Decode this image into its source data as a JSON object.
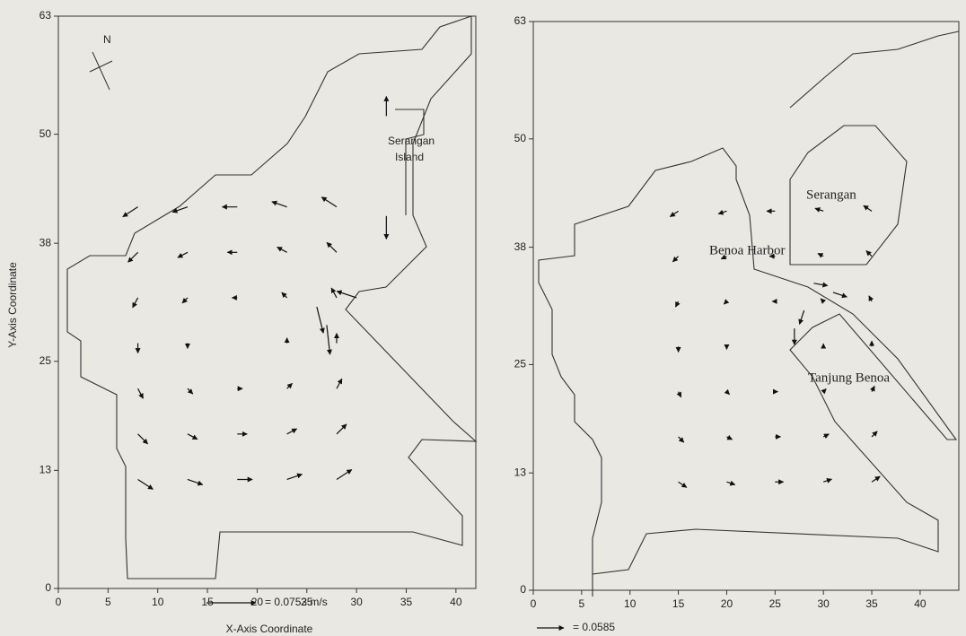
{
  "chart_data": [
    {
      "type": "quiver",
      "xlabel": "X-Axis Coordinate",
      "ylabel": "Y-Axis Coordinate",
      "annotations": [
        "N",
        "Serangan",
        "Island"
      ],
      "reference": {
        "value": 0.0753,
        "label": "= 0.0753 m/s"
      },
      "xlim": [
        0,
        42
      ],
      "ylim": [
        0,
        63
      ],
      "xticks": [
        0,
        5,
        10,
        15,
        20,
        25,
        30,
        35,
        40
      ],
      "yticks": [
        0,
        13,
        25,
        38,
        50,
        63
      ],
      "vectors": {
        "x": [
          8,
          13,
          18,
          23,
          28,
          8,
          13,
          18,
          23,
          28,
          8,
          13,
          18,
          23,
          28,
          8,
          13,
          23,
          28,
          8,
          13,
          18,
          23,
          28,
          8,
          13,
          18,
          23,
          28,
          8,
          13,
          18,
          23,
          28,
          26,
          27,
          33,
          33,
          30
        ],
        "y": [
          12,
          12,
          12,
          12,
          12,
          17,
          17,
          17,
          17,
          17,
          22,
          22,
          22,
          22,
          22,
          27,
          27,
          27,
          27,
          32,
          32,
          32,
          32,
          32,
          37,
          37,
          37,
          37,
          37,
          42,
          42,
          42,
          42,
          42,
          31,
          29,
          41,
          52,
          32
        ],
        "u": [
          0.023,
          0.023,
          0.023,
          0.023,
          0.023,
          0.015,
          0.015,
          0.015,
          0.015,
          0.015,
          0.008,
          0.008,
          0.008,
          0.008,
          0.008,
          0,
          0,
          0,
          0,
          -0.008,
          -0.008,
          -0.008,
          -0.008,
          -0.008,
          -0.015,
          -0.015,
          -0.015,
          -0.015,
          -0.015,
          -0.023,
          -0.023,
          -0.023,
          -0.023,
          -0.023,
          0.01,
          0.005,
          0,
          0,
          -0.03
        ],
        "v": [
          -0.015,
          -0.008,
          0,
          0.008,
          0.015,
          -0.015,
          -0.008,
          0,
          0.008,
          0.015,
          -0.015,
          -0.008,
          0,
          0.008,
          0.015,
          -0.015,
          -0.008,
          0.008,
          0.015,
          -0.015,
          -0.008,
          0,
          0.008,
          0.015,
          -0.015,
          -0.008,
          0,
          0.008,
          0.015,
          -0.015,
          -0.008,
          0,
          0.008,
          0.015,
          -0.04,
          -0.045,
          -0.035,
          0.03,
          0.01
        ]
      }
    },
    {
      "type": "quiver",
      "annotations": [
        "Serangan",
        "Benoa Harbor",
        "Tanjung Benoa"
      ],
      "reference": {
        "value": 0.0585,
        "label": "= 0.0585"
      },
      "xlim": [
        0,
        44
      ],
      "ylim": [
        0,
        63
      ],
      "xticks": [
        0,
        5,
        10,
        15,
        20,
        25,
        30,
        35,
        40
      ],
      "yticks": [
        0,
        13,
        25,
        38,
        50,
        63
      ],
      "vectors": {
        "x": [
          15,
          20,
          25,
          30,
          35,
          15,
          20,
          25,
          30,
          35,
          15,
          20,
          25,
          30,
          35,
          15,
          20,
          30,
          35,
          15,
          20,
          25,
          30,
          35,
          15,
          20,
          25,
          30,
          35,
          15,
          20,
          25,
          30,
          35,
          27,
          28,
          31,
          29
        ],
        "y": [
          12,
          12,
          12,
          12,
          12,
          17,
          17,
          17,
          17,
          17,
          22,
          22,
          22,
          22,
          22,
          27,
          27,
          27,
          27,
          32,
          32,
          32,
          32,
          32,
          37,
          37,
          37,
          37,
          37,
          42,
          42,
          42,
          42,
          42,
          29,
          31,
          33,
          34
        ],
        "u": [
          0.018,
          0.018,
          0.018,
          0.018,
          0.018,
          0.012,
          0.012,
          0.012,
          0.012,
          0.012,
          0.006,
          0.006,
          0.006,
          0.006,
          0.006,
          0,
          0,
          0,
          0,
          -0.006,
          -0.006,
          -0.006,
          -0.006,
          -0.006,
          -0.012,
          -0.012,
          -0.012,
          -0.012,
          -0.012,
          -0.018,
          -0.018,
          -0.018,
          -0.018,
          -0.018,
          0,
          -0.01,
          0.03,
          0.03
        ],
        "v": [
          -0.012,
          -0.006,
          0,
          0.006,
          0.012,
          -0.012,
          -0.006,
          0,
          0.006,
          0.012,
          -0.012,
          -0.006,
          0,
          0.006,
          0.012,
          -0.012,
          -0.006,
          0.006,
          0.012,
          -0.012,
          -0.006,
          0,
          0.006,
          0.012,
          -0.012,
          -0.006,
          0,
          0.006,
          0.012,
          -0.012,
          -0.006,
          0,
          0.006,
          0.012,
          -0.035,
          -0.03,
          -0.01,
          -0.005
        ]
      }
    }
  ]
}
